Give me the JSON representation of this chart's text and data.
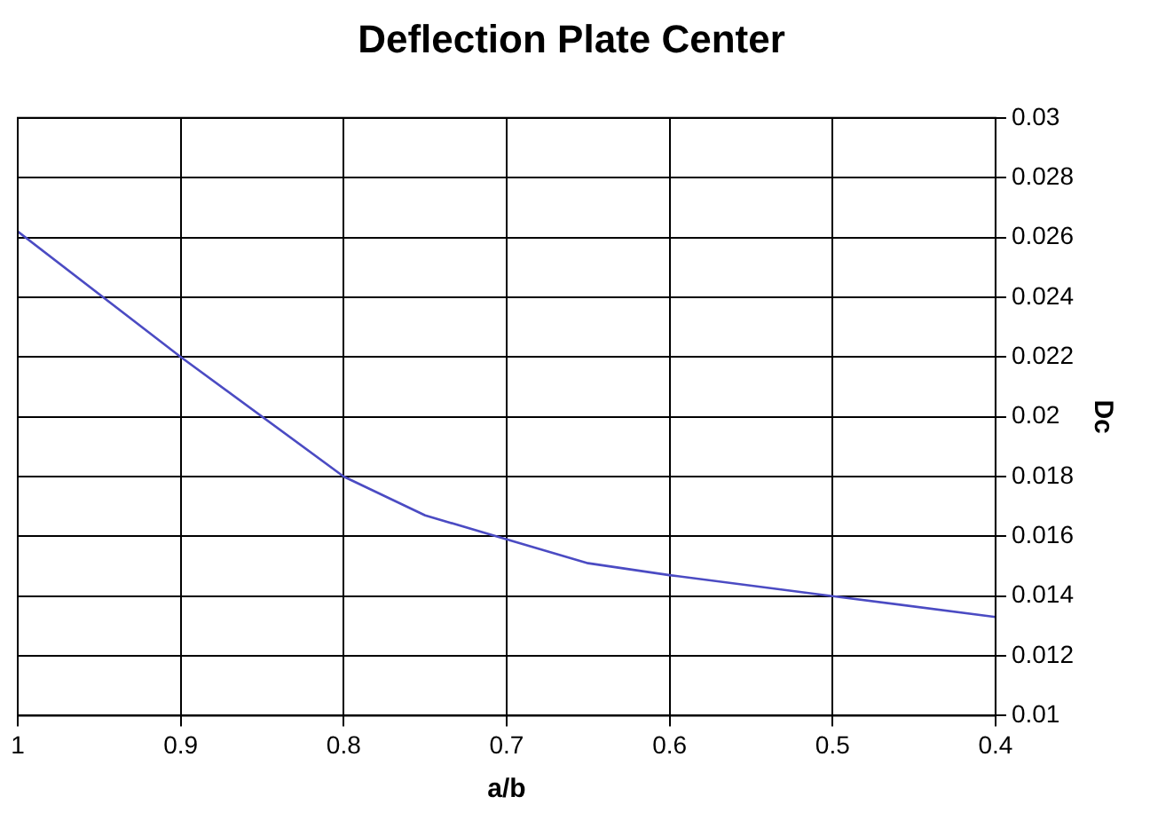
{
  "chart_data": {
    "type": "line",
    "title": "Deflection Plate Center",
    "xlabel": "a/b",
    "ylabel": "Dc",
    "x": [
      1,
      0.9,
      0.8,
      0.75,
      0.7,
      0.65,
      0.6,
      0.5,
      0.4
    ],
    "series": [
      {
        "color": "#4b4bc3",
        "values": [
          0.0262,
          0.022,
          0.018,
          0.0167,
          0.0159,
          0.0151,
          0.0147,
          0.014,
          0.0133
        ]
      }
    ],
    "xlim": [
      1,
      0.4
    ],
    "xticks": [
      1,
      0.9,
      0.8,
      0.7,
      0.6,
      0.5,
      0.4
    ],
    "ylim": [
      0.01,
      0.03
    ],
    "yticks": [
      0.01,
      0.012,
      0.014,
      0.016,
      0.018,
      0.02,
      0.022,
      0.024,
      0.026,
      0.028,
      0.03
    ],
    "grid": true,
    "legend": false,
    "marker": "none",
    "line_style": "solid"
  }
}
